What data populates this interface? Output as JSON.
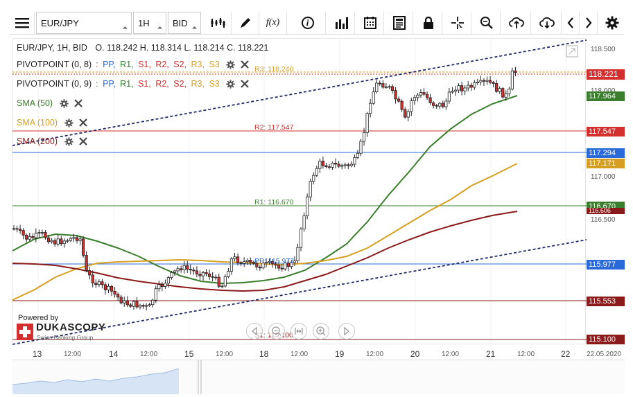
{
  "toolbar": {
    "instrument": "EUR/JPY",
    "timeframe": "1H",
    "side": "BID",
    "function_label": "f(x)",
    "info_label": "i"
  },
  "chart_header": {
    "symbol_line": "EUR/JPY, 1H, BID",
    "ohlc": "O. 118.242 H. 118.314 L. 118.214 C. 118.221"
  },
  "legends": [
    {
      "name": "PIVOTPOINT (0, 8)",
      "params": [
        ":",
        "PP,",
        "R1,",
        "S1,",
        "R2,",
        "S2,",
        "R3,",
        "S3"
      ],
      "color": "#222"
    },
    {
      "name": "PIVOTPOINT (0, 9)",
      "params": [
        ":",
        "PP,",
        "R1,",
        "S1,",
        "R2,",
        "S2,",
        "R3,",
        "S3"
      ],
      "color": "#222"
    },
    {
      "name": "SMA (50)",
      "color": "#3a7d2c"
    },
    {
      "name": "SMA (100)",
      "color": "#d79f21"
    },
    {
      "name": "SMA (200)",
      "color": "#8b1a1a"
    }
  ],
  "param_colors": [
    "#555",
    "#2a6ad8",
    "#2e7d32",
    "#d32f2f",
    "#d32f2f",
    "#d32f2f",
    "#d79f21",
    "#d79f21"
  ],
  "pivot_labels": {
    "r3": "R3: 118.240",
    "r2": "R2: 117.547",
    "r1": "R1: 116.670",
    "pp": "PP: 115.977",
    "s1": "S1: 115.100"
  },
  "price_axis": {
    "ticks": [
      "118.500",
      "118.000",
      "117.000",
      "116.500"
    ],
    "labels": [
      {
        "value": "118.221",
        "color": "#d32f2f"
      },
      {
        "value": "117.964",
        "color": "#3a7d2c"
      },
      {
        "value": "117.547",
        "color": "#d32f2f"
      },
      {
        "value": "117.294",
        "color": "#2a6ad8"
      },
      {
        "value": "117.171",
        "color": "#d79f21"
      },
      {
        "value": "116.670",
        "color": "#3a7d2c"
      },
      {
        "value": "116.606",
        "color": "#8b1a1a"
      },
      {
        "value": "115.977",
        "color": "#2a6ad8"
      },
      {
        "value": "115.553",
        "color": "#8b1a1a"
      },
      {
        "value": "115.100",
        "color": "#8b1a1a"
      }
    ]
  },
  "time_axis": {
    "labels": [
      "13",
      "12:00",
      "14",
      "12:00",
      "15",
      "12:00",
      "18",
      "12:00",
      "19",
      "12:00",
      "20",
      "12:00",
      "21",
      "12:00",
      "22",
      "22.05.2020"
    ]
  },
  "branding": {
    "powered_by": "Powered by",
    "brand": "DUKASCOPY",
    "tagline": "Swiss Banking Group"
  },
  "colors": {
    "accent": "#1a1a1a",
    "sma50": "#3a7d2c",
    "sma100": "#d79f21",
    "sma200": "#8b1a1a",
    "trend": "#1f2a6b",
    "bull": "#ffffff",
    "bear": "#d32f2f"
  }
}
